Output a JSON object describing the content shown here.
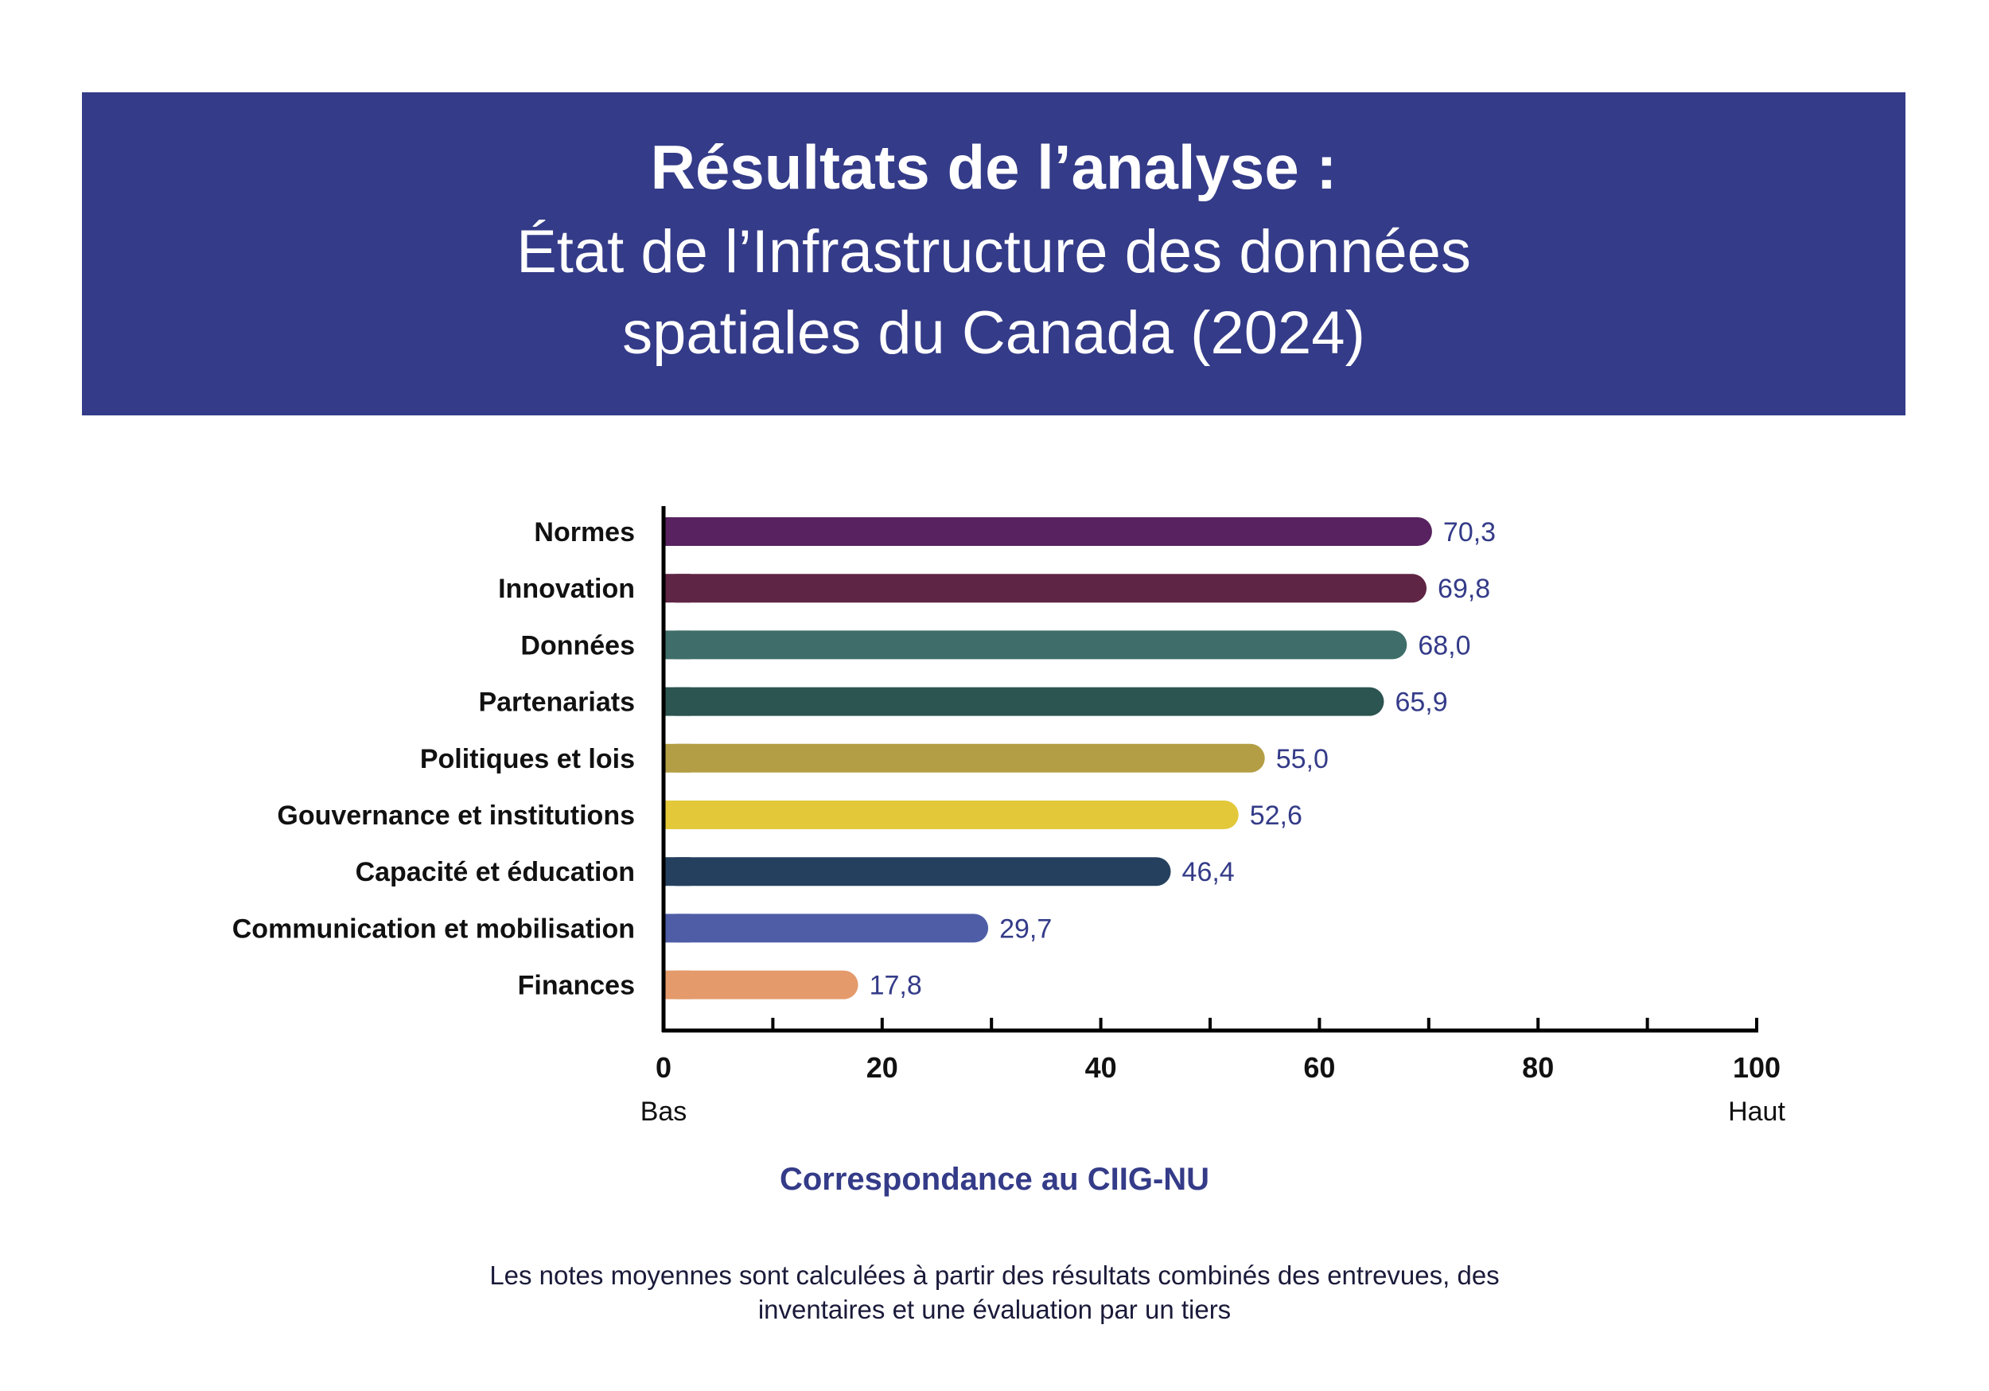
{
  "header": {
    "title": "Résultats de l’analyse :",
    "subtitle_line1": "État de l’Infrastructure des données",
    "subtitle_line2": "spatiales du Canada (2024)",
    "background": "#343b88"
  },
  "chart_data": {
    "type": "bar",
    "orientation": "horizontal",
    "categories": [
      "Normes",
      "Innovation",
      "Données",
      "Partenariats",
      "Politiques et lois",
      "Gouvernance et institutions",
      "Capacité et éducation",
      "Communication et mobilisation",
      "Finances"
    ],
    "values": [
      70.3,
      69.8,
      68.0,
      65.9,
      55.0,
      52.6,
      46.4,
      29.7,
      17.8
    ],
    "value_labels": [
      "70,3",
      "69,8",
      "68,0",
      "65,9",
      "55,0",
      "52,6",
      "46,4",
      "29,7",
      "17,8"
    ],
    "colors": [
      "#57225f",
      "#5f2544",
      "#3f6e6a",
      "#2c5450",
      "#b49e45",
      "#e3c83a",
      "#25405e",
      "#4f5da7",
      "#e49a6b"
    ],
    "xlim": [
      0,
      100
    ],
    "x_tick_labels": [
      "0",
      "20",
      "40",
      "60",
      "80",
      "100"
    ],
    "x_start_label": "Bas",
    "x_end_label": "Haut",
    "xlabel": "Correspondance au CIIG-NU",
    "value_label_color": "#343b88"
  },
  "footnote": {
    "line1": "Les notes moyennes sont calculées à partir des résultats combinés des entrevues, des",
    "line2": "inventaires et une évaluation par un tiers"
  }
}
